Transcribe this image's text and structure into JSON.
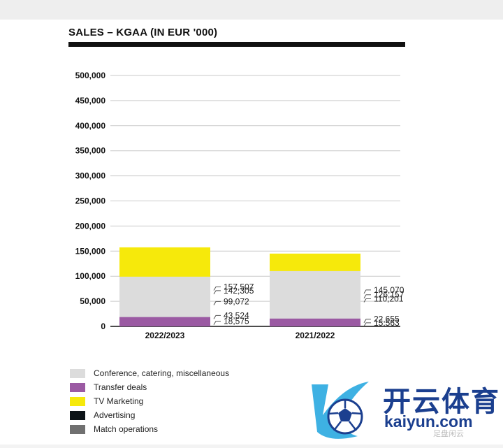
{
  "chart_data": {
    "type": "bar",
    "stacked": true,
    "title": "SALES – KGAA (IN EUR '000)",
    "categories": [
      "2022/2023",
      "2021/2022"
    ],
    "ylim": [
      0,
      500000
    ],
    "yticks": [
      "0",
      "50,000",
      "100,000",
      "150,000",
      "200,000",
      "250,000",
      "300,000",
      "350,000",
      "400,000",
      "450,000",
      "500,000"
    ],
    "grid": true,
    "legend_position": "bottom-left",
    "series": [
      {
        "name": "Match operations",
        "color": "#707070",
        "values": [
          43524,
          22655
        ],
        "labels": [
          "43,524",
          "22,655"
        ]
      },
      {
        "name": "Advertising",
        "color": "#0d1418",
        "values": [
          142305,
          126157
        ],
        "labels": [
          "142,305",
          "126,157"
        ]
      },
      {
        "name": "TV Marketing",
        "color": "#f6e90b",
        "values": [
          157507,
          145070
        ],
        "labels": [
          "157,507",
          "145,070"
        ]
      },
      {
        "name": "Conference, catering, miscellaneous",
        "color": "#dcdcdc",
        "values": [
          99072,
          110201
        ],
        "labels": [
          "99,072",
          "110,201"
        ]
      },
      {
        "name": "Transfer deals",
        "color": "#9b5aa3",
        "values": [
          18575,
          15563
        ],
        "labels": [
          "18,575",
          "15,563"
        ]
      }
    ]
  },
  "legend_order": [
    3,
    4,
    2,
    1,
    0
  ],
  "watermark": {
    "brand_cn": "开云体育",
    "brand_en": "kaiyun.com",
    "corner_text": "足盘闲云"
  }
}
